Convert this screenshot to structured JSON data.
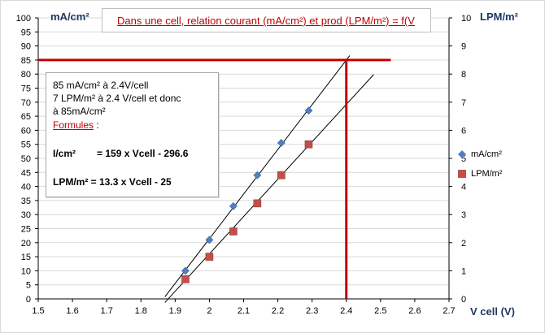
{
  "title": "Dans une cell, relation  courant (mA/cm²) et prod (LPM/m²) = f(V",
  "left_axis_unit": "mA/cm²",
  "right_axis_unit": "LPM/m²",
  "x_axis_title": "V cell (V)",
  "note": {
    "line1": "85 mA/cm² à 2.4V/cell",
    "line2": "7 LPM/m² à 2.4 V/cell et donc",
    "line3": "à  85mA/cm²",
    "line4": "Formules",
    "line4_suffix": " :",
    "line5_label": "I/cm²",
    "line5_value": "= 159 x Vcell - 296.6",
    "line6": "LPM/m² = 13.3 x Vcell - 25"
  },
  "colors": {
    "series1": "#4f81bd",
    "series2": "#c0504d",
    "reference": "#c00000",
    "grid": "#d9d9d9"
  },
  "chart_data": {
    "type": "scatter",
    "xlim": [
      1.5,
      2.7
    ],
    "ylim_left": [
      0,
      100
    ],
    "ylim_right": [
      0,
      10
    ],
    "x_ticks": [
      1.5,
      1.6,
      1.7,
      1.8,
      1.9,
      2,
      2.1,
      2.2,
      2.3,
      2.4,
      2.5,
      2.6,
      2.7
    ],
    "y_left_ticks": [
      0,
      5,
      10,
      15,
      20,
      25,
      30,
      35,
      40,
      45,
      50,
      55,
      60,
      65,
      70,
      75,
      80,
      85,
      90,
      95,
      100
    ],
    "y_right_ticks": [
      0,
      1,
      2,
      3,
      4,
      5,
      6,
      7,
      8,
      9,
      10
    ],
    "grid": true,
    "legend_position": "right",
    "series": [
      {
        "name": "mA/cm²",
        "axis": "left",
        "marker": "diamond",
        "x": [
          1.93,
          2.0,
          2.07,
          2.14,
          2.21,
          2.29
        ],
        "y": [
          10,
          21,
          33,
          44,
          55.5,
          67
        ],
        "trendline": {
          "slope": 159,
          "intercept": -296.6,
          "x_range": [
            1.87,
            2.41
          ]
        }
      },
      {
        "name": "LPM/m²",
        "axis": "right",
        "marker": "square",
        "x": [
          1.93,
          2.0,
          2.07,
          2.14,
          2.21,
          2.29
        ],
        "y": [
          0.7,
          1.5,
          2.4,
          3.4,
          4.4,
          5.5
        ],
        "trendline": {
          "slope": 13.3,
          "intercept": -25,
          "x_range": [
            1.87,
            2.48
          ]
        }
      }
    ],
    "reference_lines": [
      {
        "orientation": "horizontal",
        "axis": "left",
        "value": 85,
        "x_from": 1.5,
        "x_to": 2.53
      },
      {
        "orientation": "vertical",
        "value": 2.4,
        "y_from": 0,
        "y_to": 85
      }
    ]
  }
}
